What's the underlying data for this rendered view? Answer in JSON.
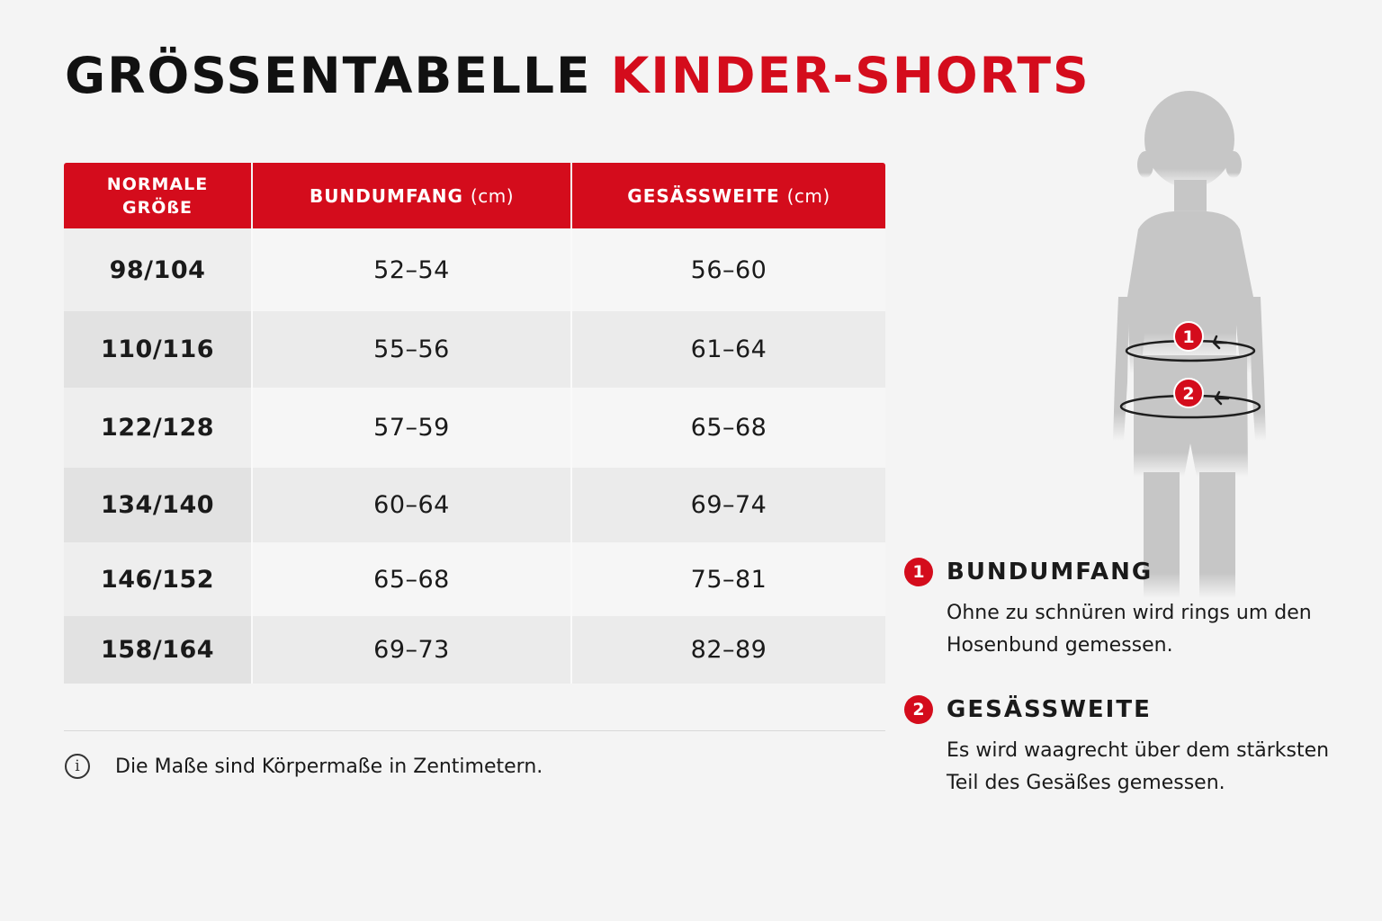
{
  "title": {
    "part1": "GRÖSSENTABELLE",
    "part2": "KINDER-SHORTS"
  },
  "colors": {
    "accent": "#d40c1c",
    "text": "#111111",
    "background": "#f4f4f4"
  },
  "table": {
    "headers": [
      {
        "label": "NORMALE GRÖßE",
        "unit": ""
      },
      {
        "label": "BUNDUMFANG",
        "unit": "(cm)"
      },
      {
        "label": "GESÄSSWEITE",
        "unit": "(cm)"
      }
    ],
    "rows": [
      {
        "size": "98/104",
        "waist": "52–54",
        "hip": "56–60"
      },
      {
        "size": "110/116",
        "waist": "55–56",
        "hip": "61–64"
      },
      {
        "size": "122/128",
        "waist": "57–59",
        "hip": "65–68"
      },
      {
        "size": "134/140",
        "waist": "60–64",
        "hip": "69–74"
      },
      {
        "size": "146/152",
        "waist": "65–68",
        "hip": "75–81"
      },
      {
        "size": "158/164",
        "waist": "69–73",
        "hip": "82–89"
      }
    ]
  },
  "note": {
    "icon": "info-icon",
    "text": "Die Maße sind Körpermaße in Zentimetern."
  },
  "figure": {
    "icon": "child-silhouette-icon",
    "markers": [
      "1",
      "2"
    ]
  },
  "legend": [
    {
      "number": "1",
      "title": "BUNDUMFANG",
      "description": "Ohne zu schnüren wird rings um den Hosenbund gemessen."
    },
    {
      "number": "2",
      "title": "GESÄSSWEITE",
      "description": "Es wird waagrecht über dem stärksten Teil des Gesäßes gemessen."
    }
  ]
}
